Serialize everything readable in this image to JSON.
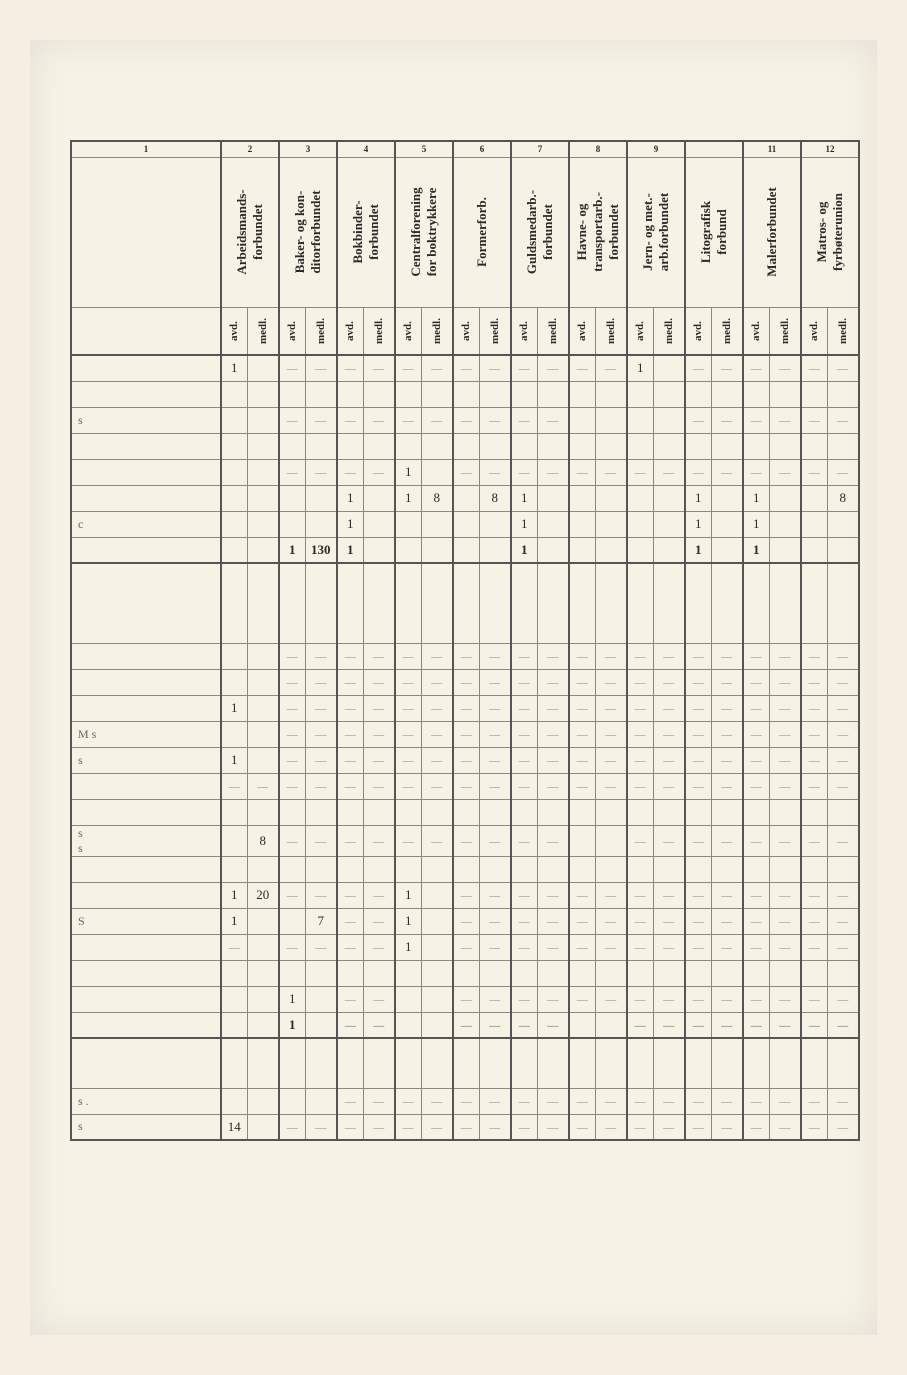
{
  "header": {
    "row_label_colnum": "1",
    "groups": [
      {
        "num": "2",
        "label": "Arbeidsmands-\nforbundet"
      },
      {
        "num": "3",
        "label": "Baker- og kon-\nditorforbundet"
      },
      {
        "num": "4",
        "label": "Bokbinder-\nforbundet"
      },
      {
        "num": "5",
        "label": "Centralforening\nfor boktrykkere"
      },
      {
        "num": "6",
        "label": "Formerforb."
      },
      {
        "num": "7",
        "label": "Guldsmedarb.-\nforbundet"
      },
      {
        "num": "8",
        "label": "Havne- og\ntransportarb.-\nforbundet"
      },
      {
        "num": "9",
        "label": "Jern- og met.-\narb.forbundet"
      },
      {
        "num": "",
        "label": "Litografisk\nforbund"
      },
      {
        "num": "11",
        "label": "Malerforbundet"
      },
      {
        "num": "12",
        "label": "Matros- og\nfyrbøterunion"
      }
    ],
    "sub_avd": "avd.",
    "sub_medl": "medl."
  },
  "body": {
    "rows": [
      {
        "label": "",
        "cells": [
          "1",
          "",
          "D",
          "D",
          "D",
          "D",
          "D",
          "D",
          "D",
          "D",
          "D",
          "D",
          "D",
          "D",
          "1",
          "",
          "D",
          "D",
          "D",
          "D",
          "D",
          "D"
        ]
      },
      {
        "label": "",
        "cells": [
          "",
          "",
          "",
          "",
          "",
          "",
          "",
          "",
          "",
          "",
          "",
          "",
          "",
          "",
          "",
          "",
          "",
          "",
          "",
          "",
          "",
          ""
        ]
      },
      {
        "label": "s",
        "cells": [
          "",
          "",
          "D",
          "D",
          "D",
          "D",
          "D",
          "D",
          "D",
          "D",
          "D",
          "D",
          "",
          "",
          "",
          "",
          "D",
          "D",
          "D",
          "D",
          "D",
          "D"
        ]
      },
      {
        "label": "",
        "cells": [
          "",
          "",
          "",
          "",
          "",
          "",
          "",
          "",
          "",
          "",
          "",
          "",
          "",
          "",
          "",
          "",
          "",
          "",
          "",
          "",
          "",
          ""
        ]
      },
      {
        "label": "",
        "cells": [
          "",
          "",
          "D",
          "D",
          "D",
          "D",
          "1",
          "",
          "D",
          "D",
          "D",
          "D",
          "D",
          "D",
          "D",
          "D",
          "D",
          "D",
          "D",
          "D",
          "D",
          "D"
        ]
      },
      {
        "label": "",
        "cells": [
          "",
          "",
          "",
          "",
          "1",
          "",
          "1",
          "8",
          "",
          "8",
          "1",
          "",
          "",
          "",
          "",
          "",
          "1",
          "",
          "1",
          "",
          "",
          "8"
        ]
      },
      {
        "label": "c",
        "cells": [
          "",
          "",
          "",
          "",
          "1",
          "",
          "",
          "",
          "",
          "",
          "1",
          "",
          "",
          "",
          "",
          "",
          "1",
          "",
          "1",
          "",
          "",
          ""
        ]
      }
    ],
    "sum1": {
      "label": "",
      "cells": [
        "",
        "",
        "1",
        "130",
        "1",
        "",
        "",
        "",
        "",
        "",
        "1",
        "",
        "",
        "",
        "",
        "",
        "1",
        "",
        "1",
        "",
        "",
        ""
      ]
    },
    "section2_rows": [
      {
        "label": "",
        "cells": [
          "",
          "",
          "D",
          "D",
          "D",
          "D",
          "D",
          "D",
          "D",
          "D",
          "D",
          "D",
          "D",
          "D",
          "D",
          "D",
          "D",
          "D",
          "D",
          "D",
          "D",
          "D"
        ]
      },
      {
        "label": "",
        "cells": [
          "",
          "",
          "D",
          "D",
          "D",
          "D",
          "D",
          "D",
          "D",
          "D",
          "D",
          "D",
          "D",
          "D",
          "D",
          "D",
          "D",
          "D",
          "D",
          "D",
          "D",
          "D"
        ]
      },
      {
        "label": "",
        "cells": [
          "1",
          "",
          "D",
          "D",
          "D",
          "D",
          "D",
          "D",
          "D",
          "D",
          "D",
          "D",
          "D",
          "D",
          "D",
          "D",
          "D",
          "D",
          "D",
          "D",
          "D",
          "D"
        ]
      },
      {
        "label": "M   s",
        "cells": [
          "",
          "",
          "D",
          "D",
          "D",
          "D",
          "D",
          "D",
          "D",
          "D",
          "D",
          "D",
          "D",
          "D",
          "D",
          "D",
          "D",
          "D",
          "D",
          "D",
          "D",
          "D"
        ]
      },
      {
        "label": "s",
        "cells": [
          "1",
          "",
          "D",
          "D",
          "D",
          "D",
          "D",
          "D",
          "D",
          "D",
          "D",
          "D",
          "D",
          "D",
          "D",
          "D",
          "D",
          "D",
          "D",
          "D",
          "D",
          "D"
        ]
      },
      {
        "label": "",
        "cells": [
          "D",
          "D",
          "D",
          "D",
          "D",
          "D",
          "D",
          "D",
          "D",
          "D",
          "D",
          "D",
          "D",
          "D",
          "D",
          "D",
          "D",
          "D",
          "D",
          "D",
          "D",
          "D"
        ]
      },
      {
        "label": "",
        "cells": [
          "",
          "",
          "",
          "",
          "",
          "",
          "",
          "",
          "",
          "",
          "",
          "",
          "",
          "",
          "",
          "",
          "",
          "",
          "",
          "",
          "",
          ""
        ]
      },
      {
        "label": "s\ns",
        "cells": [
          "",
          "8",
          "D",
          "D",
          "D",
          "D",
          "D",
          "D",
          "D",
          "D",
          "D",
          "D",
          "",
          "",
          "D",
          "D",
          "D",
          "D",
          "D",
          "D",
          "D",
          "D"
        ]
      },
      {
        "label": "",
        "cells": [
          "",
          "",
          "",
          "",
          "",
          "",
          "",
          "",
          "",
          "",
          "",
          "",
          "",
          "",
          "",
          "",
          "",
          "",
          "",
          "",
          "",
          ""
        ]
      },
      {
        "label": "",
        "cells": [
          "1",
          "20",
          "D",
          "D",
          "D",
          "D",
          "1",
          "",
          "D",
          "D",
          "D",
          "D",
          "D",
          "D",
          "D",
          "D",
          "D",
          "D",
          "D",
          "D",
          "D",
          "D"
        ]
      },
      {
        "label": "S",
        "cells": [
          "1",
          "",
          "",
          "7",
          "D",
          "D",
          "1",
          "",
          "D",
          "D",
          "D",
          "D",
          "D",
          "D",
          "D",
          "D",
          "D",
          "D",
          "D",
          "D",
          "D",
          "D"
        ]
      },
      {
        "label": "",
        "cells": [
          "D",
          "",
          "D",
          "D",
          "D",
          "D",
          "1",
          "",
          "D",
          "D",
          "D",
          "D",
          "D",
          "D",
          "D",
          "D",
          "D",
          "D",
          "D",
          "D",
          "D",
          "D"
        ]
      },
      {
        "label": "",
        "cells": [
          "",
          "",
          "",
          "",
          "",
          "",
          "",
          "",
          "",
          "",
          "",
          "",
          "",
          "",
          "",
          "",
          "",
          "",
          "",
          "",
          "",
          ""
        ]
      },
      {
        "label": "",
        "cells": [
          "",
          "",
          "1",
          "",
          "D",
          "D",
          "",
          "",
          "D",
          "D",
          "D",
          "D",
          "D",
          "D",
          "D",
          "D",
          "D",
          "D",
          "D",
          "D",
          "D",
          "D"
        ]
      }
    ],
    "sum2": {
      "label": "",
      "cells": [
        "",
        "",
        "1",
        "",
        "D",
        "D",
        "",
        "",
        "D",
        "D",
        "D",
        "D",
        "",
        "",
        "D",
        "D",
        "D",
        "D",
        "D",
        "D",
        "D",
        "D"
      ]
    },
    "section3_rows": [
      {
        "label": "s .",
        "cells": [
          "",
          "",
          "",
          "",
          "D",
          "D",
          "D",
          "D",
          "D",
          "D",
          "D",
          "D",
          "D",
          "D",
          "D",
          "D",
          "D",
          "D",
          "D",
          "D",
          "D",
          "D"
        ]
      },
      {
        "label": "s",
        "cells": [
          "14",
          "",
          "D",
          "D",
          "D",
          "D",
          "D",
          "D",
          "D",
          "D",
          "D",
          "D",
          "D",
          "D",
          "D",
          "D",
          "D",
          "D",
          "D",
          "D",
          "D",
          "D"
        ]
      }
    ]
  }
}
